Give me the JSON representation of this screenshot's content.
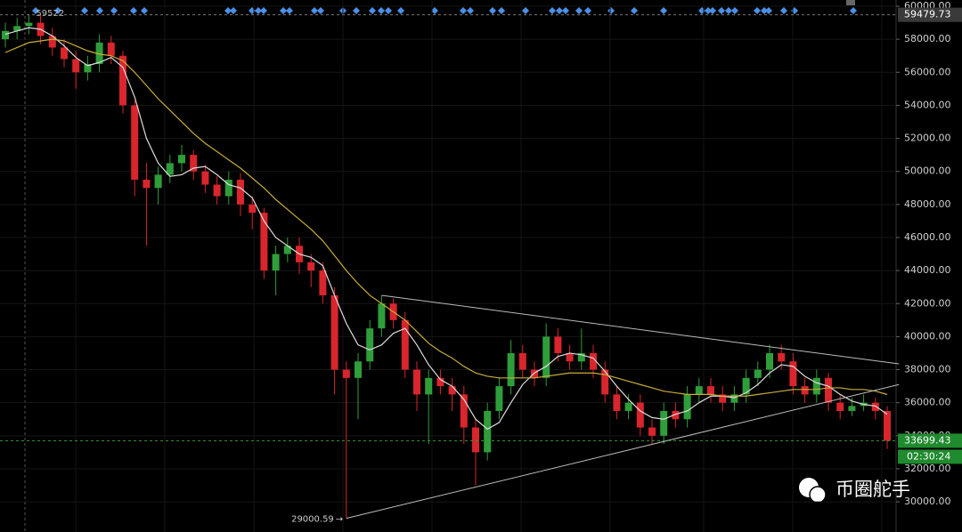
{
  "chart_data": {
    "type": "candlestick",
    "open": [
      58000,
      58500,
      58800,
      59000,
      58200,
      57500,
      56800,
      56000,
      56500,
      57800,
      57000,
      54000,
      49500,
      49000,
      49800,
      50500,
      51000,
      50000,
      49200,
      48500,
      49500,
      48000,
      47500,
      44000,
      45000,
      45500,
      44500,
      44000,
      42500,
      38000,
      37500,
      38500,
      40500,
      42000,
      41000,
      38000,
      36500,
      37500,
      37000,
      36500,
      34500,
      33000,
      35500,
      37000,
      39000,
      38000,
      37500,
      40000,
      39000,
      38500,
      39000,
      38000,
      36500,
      35500,
      36000,
      34500,
      34000,
      35500,
      35000,
      36500,
      37000,
      36500,
      36000,
      36500,
      37500,
      38000,
      39000,
      38500,
      37000,
      36500,
      37500,
      36000,
      35500,
      35800,
      36000,
      35500
    ],
    "high": [
      59000,
      59300,
      59522,
      59500,
      58700,
      58000,
      57300,
      57000,
      58300,
      58200,
      57300,
      54300,
      50500,
      50300,
      51000,
      51600,
      51300,
      50400,
      49700,
      50000,
      49900,
      48500,
      47800,
      45500,
      46000,
      46000,
      45000,
      44500,
      43000,
      38500,
      39000,
      41000,
      42500,
      42300,
      41500,
      38500,
      38000,
      38000,
      37500,
      37000,
      35000,
      36000,
      37500,
      39800,
      39500,
      38500,
      40800,
      40500,
      39500,
      40500,
      39500,
      38500,
      37000,
      36500,
      36500,
      35000,
      36000,
      36000,
      37000,
      37500,
      37500,
      37000,
      37000,
      38000,
      38500,
      39500,
      39500,
      39000,
      37500,
      38000,
      37800,
      36500,
      36300,
      36500,
      36300,
      35800
    ],
    "low": [
      57500,
      58000,
      58300,
      57700,
      57000,
      56300,
      55000,
      55500,
      56000,
      56500,
      53500,
      48500,
      45500,
      48000,
      49300,
      50000,
      49500,
      48700,
      48000,
      48000,
      47300,
      46500,
      43500,
      42500,
      44500,
      43800,
      43000,
      42000,
      36500,
      29000.59,
      35000,
      38000,
      40000,
      40500,
      37500,
      35500,
      33500,
      36500,
      35500,
      33500,
      31000,
      32500,
      35000,
      36500,
      37500,
      37000,
      37000,
      38500,
      38000,
      38000,
      37500,
      36000,
      35000,
      35000,
      34000,
      33500,
      33500,
      34500,
      34500,
      36000,
      36000,
      35500,
      35500,
      36000,
      37000,
      37500,
      38000,
      36500,
      36000,
      36000,
      35500,
      35000,
      35200,
      35500,
      35000,
      33200
    ],
    "close": [
      58500,
      58800,
      59000,
      58200,
      57500,
      56800,
      56000,
      56500,
      57800,
      57000,
      54000,
      49500,
      49000,
      49800,
      50500,
      51000,
      50000,
      49200,
      48500,
      49500,
      48000,
      47500,
      44000,
      45000,
      45500,
      44500,
      44000,
      42500,
      38000,
      37500,
      38500,
      40500,
      42000,
      41000,
      38000,
      36500,
      37500,
      37000,
      36500,
      34500,
      33000,
      35500,
      37000,
      39000,
      38000,
      37500,
      40000,
      39000,
      38500,
      39000,
      38000,
      36500,
      35500,
      36000,
      34500,
      34000,
      35500,
      35000,
      36500,
      37000,
      36500,
      36000,
      36500,
      37500,
      38000,
      39000,
      38500,
      37000,
      36500,
      37500,
      36000,
      35500,
      35800,
      36000,
      35500,
      33700
    ],
    "up_color": "#2f9e3a",
    "down_color": "#d9252c",
    "series": [
      {
        "color": "#dcdcdc",
        "values": [
          58300,
          58500,
          58700,
          58600,
          58200,
          57600,
          56900,
          56400,
          56600,
          56900,
          56300,
          54500,
          52000,
          50500,
          49700,
          49800,
          50200,
          50300,
          49800,
          49200,
          49000,
          48400,
          47000,
          46000,
          45500,
          45000,
          44800,
          44300,
          42500,
          40800,
          39500,
          39200,
          39500,
          40200,
          40500,
          39500,
          38300,
          37400,
          37000,
          36200,
          35000,
          34400,
          34800,
          36000,
          37100,
          37800,
          38200,
          38800,
          39000,
          38900,
          38700,
          37900,
          37000,
          36200,
          35500,
          35100,
          35000,
          35300,
          35500,
          36000,
          36400,
          36400,
          36300,
          36600,
          37100,
          37800,
          38300,
          38200,
          37600,
          37200,
          37000,
          36500,
          36100,
          35900,
          35800,
          35300
        ]
      },
      {
        "color": "#c8ad3a",
        "values": [
          57200,
          57500,
          57800,
          57900,
          58000,
          57900,
          57600,
          57300,
          57100,
          57000,
          56700,
          56000,
          55200,
          54400,
          53700,
          53000,
          52300,
          51700,
          51200,
          50700,
          50200,
          49600,
          49000,
          48300,
          47700,
          47100,
          46500,
          45800,
          44900,
          44000,
          43200,
          42500,
          42000,
          41500,
          41000,
          40300,
          39600,
          39100,
          38700,
          38200,
          37800,
          37600,
          37500,
          37500,
          37500,
          37500,
          37600,
          37700,
          37800,
          37800,
          37800,
          37700,
          37500,
          37300,
          37100,
          36900,
          36700,
          36600,
          36500,
          36500,
          36500,
          36400,
          36400,
          36400,
          36500,
          36600,
          36700,
          36800,
          36800,
          36800,
          36900,
          36900,
          36800,
          36800,
          36700,
          36500
        ]
      }
    ],
    "trendlines": [
      {
        "x": [
          32,
          76
        ],
        "y": [
          42500,
          38350
        ]
      },
      {
        "x": [
          29,
          76
        ],
        "y": [
          29000.59,
          37100
        ]
      }
    ],
    "ylim": [
      28174,
      60377
    ],
    "yticks": [
      {
        "value": 30000,
        "label": "30000.00"
      },
      {
        "value": 32000,
        "label": "32000.00"
      },
      {
        "value": 34000,
        "label": "34000.00"
      },
      {
        "value": 36000,
        "label": "36000.00"
      },
      {
        "value": 38000,
        "label": "38000.00"
      },
      {
        "value": 40000,
        "label": "40000.00"
      },
      {
        "value": 42000,
        "label": "42000.00"
      },
      {
        "value": 44000,
        "label": "44000.00"
      },
      {
        "value": 46000,
        "label": "46000.00"
      },
      {
        "value": 48000,
        "label": "48000.00"
      },
      {
        "value": 50000,
        "label": "50000.00"
      },
      {
        "value": 52000,
        "label": "52000.00"
      },
      {
        "value": 54000,
        "label": "54000.00"
      },
      {
        "value": 56000,
        "label": "56000.00"
      },
      {
        "value": 58000,
        "label": "58000.00"
      },
      {
        "value": 60000,
        "label": "60000.00"
      }
    ],
    "grid": true,
    "high_label": "59522",
    "low_label": "29000.59",
    "price_lines": [
      {
        "value": 59479.73,
        "label": "59479.73"
      },
      {
        "value": 33699.43,
        "label": "33699.43",
        "countdown": "02:30:24"
      }
    ],
    "watermark": "币圈舵手"
  }
}
